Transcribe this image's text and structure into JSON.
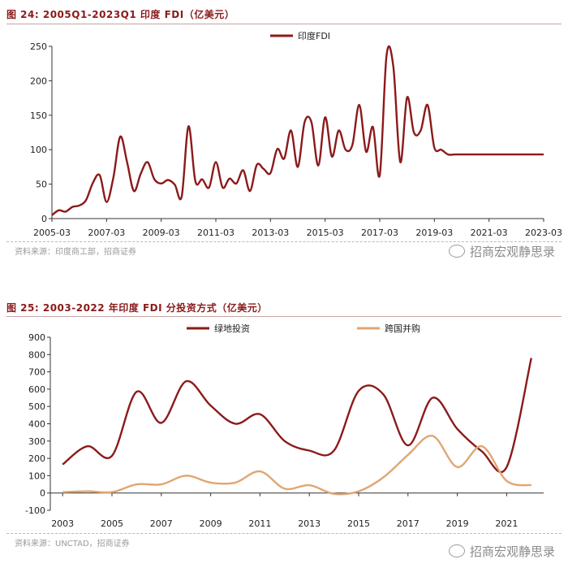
{
  "watermark": "招商宏观静思录",
  "colors": {
    "maroon": "#8b1a1a",
    "tan": "#e0a672",
    "title": "#8b1a1a"
  },
  "figure1": {
    "title": "图 24:  2005Q1-2023Q1 印度 FDI（亿美元）",
    "source": "资料来源：印度商工部，招商证券"
  },
  "figure2": {
    "title": "图 25:  2003-2022 年印度 FDI 分投资方式（亿美元）",
    "source": "资料来源：UNCTAD，招商证券"
  },
  "chart_data": [
    {
      "type": "line",
      "title": "2005Q1-2023Q1 印度 FDI（亿美元）",
      "xlabel": "",
      "ylabel": "",
      "ylim": [
        0,
        250
      ],
      "yticks": [
        0,
        50,
        100,
        150,
        200,
        250
      ],
      "xlim": [
        2005.0,
        2023.0
      ],
      "xticks": [
        {
          "label": "2005-03",
          "x": 2005.0
        },
        {
          "label": "2007-03",
          "x": 2007.0
        },
        {
          "label": "2009-03",
          "x": 2009.0
        },
        {
          "label": "2011-03",
          "x": 2011.0
        },
        {
          "label": "2013-03",
          "x": 2013.0
        },
        {
          "label": "2015-03",
          "x": 2015.0
        },
        {
          "label": "2017-03",
          "x": 2017.0
        },
        {
          "label": "2019-03",
          "x": 2019.0
        },
        {
          "label": "2021-03",
          "x": 2021.0
        },
        {
          "label": "2023-03",
          "x": 2023.0
        }
      ],
      "legend_position": "top-center",
      "series": [
        {
          "name": "印度FDI",
          "color": "#8b1a1a",
          "x": [
            2005.0,
            2005.25,
            2005.5,
            2005.75,
            2006.0,
            2006.25,
            2006.5,
            2006.75,
            2007.0,
            2007.25,
            2007.5,
            2007.75,
            2008.0,
            2008.25,
            2008.5,
            2008.75,
            2009.0,
            2009.25,
            2009.5,
            2009.75,
            2010.0,
            2010.25,
            2010.5,
            2010.75,
            2011.0,
            2011.25,
            2011.5,
            2011.75,
            2012.0,
            2012.25,
            2012.5,
            2012.75,
            2013.0,
            2013.25,
            2013.5,
            2013.75,
            2014.0,
            2014.25,
            2014.5,
            2014.75,
            2015.0,
            2015.25,
            2015.5,
            2015.75,
            2016.0,
            2016.25,
            2016.5,
            2016.75,
            2017.0,
            2017.25,
            2017.5,
            2017.75,
            2018.0,
            2018.25,
            2018.5,
            2018.75,
            2019.0,
            2019.25,
            2019.5,
            2019.75,
            2020.0,
            2020.25,
            2020.5,
            2020.75,
            2021.0,
            2021.25,
            2021.5,
            2021.75,
            2022.0,
            2022.25,
            2022.5,
            2022.75,
            2023.0
          ],
          "y": [
            5,
            12,
            10,
            17,
            19,
            27,
            52,
            63,
            24,
            60,
            119,
            82,
            40,
            65,
            82,
            57,
            51,
            56,
            49,
            32,
            134,
            54,
            57,
            45,
            82,
            45,
            58,
            51,
            70,
            40,
            78,
            72,
            66,
            101,
            87,
            128,
            75,
            140,
            140,
            77,
            147,
            90,
            128,
            100,
            107,
            165,
            97,
            133,
            63,
            237,
            220,
            82,
            176,
            125,
            128,
            165,
            103,
            100,
            93,
            93,
            93,
            93,
            93,
            93,
            93,
            93,
            93,
            93,
            93,
            93,
            93,
            93,
            93
          ]
        }
      ]
    },
    {
      "type": "line",
      "title": "2003-2022 年印度 FDI 分投资方式（亿美元）",
      "xlabel": "",
      "ylabel": "",
      "ylim": [
        -100,
        900
      ],
      "yticks": [
        -100,
        0,
        100,
        200,
        300,
        400,
        500,
        600,
        700,
        800,
        900
      ],
      "xlim": [
        2002.5,
        2022.5
      ],
      "xticks": [
        {
          "label": "2003",
          "x": 2003
        },
        {
          "label": "2005",
          "x": 2005
        },
        {
          "label": "2007",
          "x": 2007
        },
        {
          "label": "2009",
          "x": 2009
        },
        {
          "label": "2011",
          "x": 2011
        },
        {
          "label": "2013",
          "x": 2013
        },
        {
          "label": "2015",
          "x": 2015
        },
        {
          "label": "2017",
          "x": 2017
        },
        {
          "label": "2019",
          "x": 2019
        },
        {
          "label": "2021",
          "x": 2021
        }
      ],
      "legend_position": "top",
      "series": [
        {
          "name": "绿地投资",
          "color": "#8b1a1a",
          "x": [
            2003,
            2004,
            2005,
            2006,
            2007,
            2008,
            2009,
            2010,
            2011,
            2012,
            2013,
            2014,
            2015,
            2016,
            2017,
            2018,
            2019,
            2020,
            2021,
            2022
          ],
          "y": [
            165,
            270,
            215,
            585,
            405,
            645,
            505,
            400,
            455,
            300,
            245,
            245,
            590,
            570,
            275,
            550,
            370,
            240,
            150,
            780
          ]
        },
        {
          "name": "跨国并购",
          "color": "#e0a672",
          "x": [
            2003,
            2004,
            2005,
            2006,
            2007,
            2008,
            2009,
            2010,
            2011,
            2012,
            2013,
            2014,
            2015,
            2016,
            2017,
            2018,
            2019,
            2020,
            2021,
            2022
          ],
          "y": [
            5,
            10,
            5,
            50,
            50,
            100,
            60,
            60,
            125,
            25,
            45,
            -5,
            10,
            90,
            220,
            330,
            150,
            270,
            70,
            45
          ]
        }
      ]
    }
  ]
}
